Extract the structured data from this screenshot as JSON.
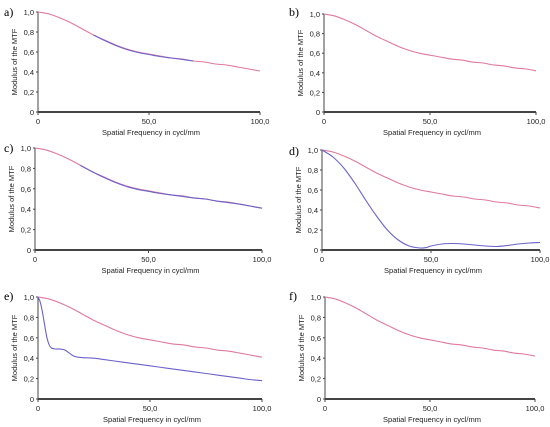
{
  "colors": {
    "diffraction_limit": "#e07a9a",
    "measured": "#6b62c9",
    "axis": "#444444"
  },
  "chart_data": [
    {
      "panel_label": "a)",
      "type": "line",
      "xlabel": "Spatial Frequency in cycl/mm",
      "ylabel": "Modulus of the MTF",
      "xlim": [
        0,
        100
      ],
      "ylim": [
        0,
        1
      ],
      "xticks": [
        "0",
        "50,0",
        "100,0"
      ],
      "yticks": [
        "0",
        "0,2",
        "0,4",
        "0,6",
        "0,8",
        "1,0"
      ],
      "series": [
        {
          "role": "diffraction_limit",
          "x": [
            0,
            5,
            10,
            15,
            20,
            25,
            30,
            35,
            40,
            45,
            50,
            55,
            60,
            65,
            70,
            75,
            80,
            85,
            90,
            95,
            100
          ],
          "y": [
            1.0,
            0.98,
            0.94,
            0.89,
            0.83,
            0.77,
            0.72,
            0.67,
            0.63,
            0.6,
            0.58,
            0.56,
            0.54,
            0.53,
            0.51,
            0.5,
            0.48,
            0.47,
            0.45,
            0.43,
            0.41
          ]
        },
        {
          "role": "measured",
          "x": [
            25,
            30,
            35,
            40,
            45,
            50,
            55,
            60,
            65,
            70
          ],
          "y": [
            0.77,
            0.715,
            0.665,
            0.625,
            0.595,
            0.575,
            0.555,
            0.54,
            0.525,
            0.51
          ]
        }
      ]
    },
    {
      "panel_label": "b)",
      "type": "line",
      "xlabel": "Spatial Frequency in cycl/mm",
      "ylabel": "Modulus of the MTF",
      "xlim": [
        0,
        100
      ],
      "ylim": [
        0,
        1
      ],
      "xticks": [
        "0",
        "50,0",
        "100,0"
      ],
      "yticks": [
        "0",
        "0,2",
        "0,4",
        "0,6",
        "0,8",
        "1,0"
      ],
      "series": [
        {
          "role": "diffraction_limit",
          "x": [
            0,
            5,
            10,
            15,
            20,
            25,
            30,
            35,
            40,
            45,
            50,
            55,
            60,
            65,
            70,
            75,
            80,
            85,
            90,
            95,
            100
          ],
          "y": [
            1.0,
            0.98,
            0.94,
            0.89,
            0.83,
            0.77,
            0.72,
            0.67,
            0.63,
            0.6,
            0.58,
            0.56,
            0.54,
            0.53,
            0.51,
            0.5,
            0.48,
            0.47,
            0.45,
            0.44,
            0.42
          ]
        }
      ]
    },
    {
      "panel_label": "c)",
      "type": "line",
      "xlabel": "Spatial Frequency in cycl/mm",
      "ylabel": "Modulus of the MTF",
      "xlim": [
        0,
        100
      ],
      "ylim": [
        0,
        1
      ],
      "xticks": [
        "0",
        "50,0",
        "100,0"
      ],
      "yticks": [
        "0",
        "0,2",
        "0,4",
        "0,6",
        "0,8",
        "1,0"
      ],
      "series": [
        {
          "role": "diffraction_limit",
          "x": [
            0,
            5,
            10,
            15,
            20,
            25,
            30,
            35,
            40,
            45,
            50,
            55,
            60,
            65,
            70,
            75,
            80,
            85,
            90,
            95,
            100
          ],
          "y": [
            1.0,
            0.98,
            0.94,
            0.89,
            0.83,
            0.77,
            0.72,
            0.67,
            0.63,
            0.6,
            0.58,
            0.56,
            0.54,
            0.53,
            0.51,
            0.5,
            0.48,
            0.47,
            0.45,
            0.43,
            0.41
          ]
        },
        {
          "role": "measured",
          "x": [
            20,
            25,
            30,
            35,
            40,
            45,
            50,
            55,
            60,
            65,
            70,
            75,
            80,
            85,
            90,
            95,
            100
          ],
          "y": [
            0.83,
            0.77,
            0.715,
            0.665,
            0.625,
            0.595,
            0.575,
            0.555,
            0.54,
            0.525,
            0.51,
            0.5,
            0.48,
            0.465,
            0.45,
            0.43,
            0.41
          ]
        }
      ]
    },
    {
      "panel_label": "d)",
      "type": "line",
      "xlabel": "Spatial Frequency in cycl/mm",
      "ylabel": "Modulus of the MTF",
      "xlim": [
        0,
        100
      ],
      "ylim": [
        0,
        1
      ],
      "xticks": [
        "0",
        "50,0",
        "100,0"
      ],
      "yticks": [
        "0",
        "0,2",
        "0,4",
        "0,6",
        "0,8",
        "1,0"
      ],
      "series": [
        {
          "role": "diffraction_limit",
          "x": [
            0,
            5,
            10,
            15,
            20,
            25,
            30,
            35,
            40,
            45,
            50,
            55,
            60,
            65,
            70,
            75,
            80,
            85,
            90,
            95,
            100
          ],
          "y": [
            1.0,
            0.98,
            0.94,
            0.89,
            0.83,
            0.77,
            0.72,
            0.67,
            0.63,
            0.6,
            0.58,
            0.56,
            0.54,
            0.53,
            0.51,
            0.5,
            0.48,
            0.47,
            0.45,
            0.44,
            0.42
          ]
        },
        {
          "role": "measured",
          "x": [
            0,
            5,
            10,
            15,
            20,
            25,
            30,
            35,
            40,
            45,
            48,
            50,
            55,
            60,
            65,
            70,
            75,
            80,
            85,
            90,
            95,
            100
          ],
          "y": [
            1.0,
            0.93,
            0.82,
            0.67,
            0.5,
            0.34,
            0.2,
            0.1,
            0.04,
            0.02,
            0.025,
            0.04,
            0.06,
            0.065,
            0.06,
            0.05,
            0.04,
            0.035,
            0.045,
            0.06,
            0.07,
            0.075
          ]
        }
      ]
    },
    {
      "panel_label": "e)",
      "type": "line",
      "xlabel": "Spatial Frequency in cycl/mm",
      "ylabel": "Modulus of the MTF",
      "xlim": [
        0,
        100
      ],
      "ylim": [
        0,
        1
      ],
      "xticks": [
        "0",
        "50,0",
        "100,0"
      ],
      "yticks": [
        "0",
        "0,2",
        "0,4",
        "0,6",
        "0,8",
        "1,0"
      ],
      "series": [
        {
          "role": "diffraction_limit",
          "x": [
            0,
            5,
            10,
            15,
            20,
            25,
            30,
            35,
            40,
            45,
            50,
            55,
            60,
            65,
            70,
            75,
            80,
            85,
            90,
            95,
            100
          ],
          "y": [
            1.0,
            0.98,
            0.94,
            0.89,
            0.83,
            0.77,
            0.72,
            0.67,
            0.63,
            0.6,
            0.58,
            0.56,
            0.54,
            0.53,
            0.51,
            0.5,
            0.48,
            0.47,
            0.45,
            0.43,
            0.41
          ]
        },
        {
          "role": "measured",
          "x": [
            0,
            1,
            2,
            3,
            4,
            5,
            6,
            8,
            10,
            12,
            14,
            16,
            18,
            20,
            25,
            30,
            35,
            40,
            45,
            50,
            55,
            60,
            65,
            70,
            75,
            80,
            85,
            90,
            95,
            100
          ],
          "y": [
            1.0,
            0.95,
            0.85,
            0.72,
            0.6,
            0.53,
            0.5,
            0.49,
            0.49,
            0.48,
            0.45,
            0.42,
            0.41,
            0.405,
            0.4,
            0.385,
            0.37,
            0.355,
            0.34,
            0.325,
            0.31,
            0.295,
            0.28,
            0.265,
            0.25,
            0.235,
            0.22,
            0.205,
            0.19,
            0.18
          ]
        }
      ]
    },
    {
      "panel_label": "f)",
      "type": "line",
      "xlabel": "Spatial Frequency in cycl/mm",
      "ylabel": "Modulus of the MTF",
      "xlim": [
        0,
        100
      ],
      "ylim": [
        0,
        1
      ],
      "xticks": [
        "0",
        "50,0",
        "100,0"
      ],
      "yticks": [
        "0",
        "0,2",
        "0,4",
        "0,6",
        "0,8",
        "1,0"
      ],
      "series": [
        {
          "role": "diffraction_limit",
          "x": [
            0,
            5,
            10,
            15,
            20,
            25,
            30,
            35,
            40,
            45,
            50,
            55,
            60,
            65,
            70,
            75,
            80,
            85,
            90,
            95,
            100
          ],
          "y": [
            1.0,
            0.98,
            0.94,
            0.89,
            0.83,
            0.77,
            0.72,
            0.67,
            0.63,
            0.6,
            0.58,
            0.56,
            0.54,
            0.53,
            0.51,
            0.5,
            0.48,
            0.47,
            0.45,
            0.44,
            0.42
          ]
        }
      ]
    }
  ]
}
